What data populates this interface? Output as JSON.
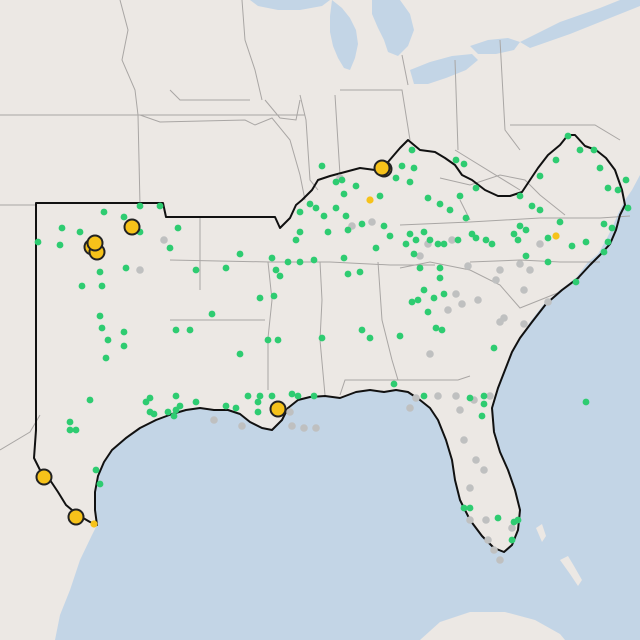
{
  "map": {
    "colors": {
      "land": "#ece8e4",
      "water": "#c3d5e6",
      "state_line": "#a9a6a4",
      "region_outline": "#111111",
      "marker_green": "#2ecc71",
      "marker_gray": "#bfc0c0",
      "marker_yellow": "#f6c21a",
      "marker_border": "#222222"
    },
    "marker_types": {
      "green": "site-marker",
      "gray": "inactive-site-marker",
      "yellow": "highlighted-site-marker"
    }
  }
}
